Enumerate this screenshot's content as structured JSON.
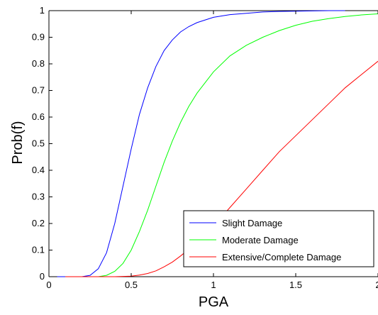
{
  "chart_data": {
    "type": "line",
    "title": "",
    "xlabel": "PGA",
    "ylabel": "Prob(f)",
    "xlim": [
      0,
      2
    ],
    "ylim": [
      0,
      1
    ],
    "xticks": [
      0,
      0.5,
      1,
      1.5,
      2
    ],
    "xtick_labels": [
      "0",
      "0.5",
      "1",
      "1.5",
      "2"
    ],
    "yticks": [
      0,
      0.1,
      0.2,
      0.3,
      0.4,
      0.5,
      0.6,
      0.7,
      0.8,
      0.9,
      1
    ],
    "ytick_labels": [
      "0",
      "0.1",
      "0.2",
      "0.3",
      "0.4",
      "0.5",
      "0.6",
      "0.7",
      "0.8",
      "0.9",
      "1"
    ],
    "grid": false,
    "legend_position": "bottom-right",
    "series": [
      {
        "name": "Slight Damage",
        "color": "#0000ff",
        "x": [
          0.05,
          0.1,
          0.15,
          0.2,
          0.25,
          0.3,
          0.35,
          0.4,
          0.45,
          0.5,
          0.55,
          0.6,
          0.65,
          0.7,
          0.75,
          0.8,
          0.85,
          0.9,
          0.95,
          1.0,
          1.1,
          1.2,
          1.3,
          1.4,
          1.5,
          1.6,
          1.7,
          1.8
        ],
        "y": [
          0.0,
          0.0,
          0.0,
          0.0,
          0.005,
          0.03,
          0.09,
          0.2,
          0.34,
          0.48,
          0.61,
          0.71,
          0.79,
          0.85,
          0.89,
          0.92,
          0.94,
          0.955,
          0.965,
          0.975,
          0.985,
          0.99,
          0.995,
          0.997,
          0.998,
          0.999,
          1.0,
          1.0
        ]
      },
      {
        "name": "Moderate Damage",
        "color": "#00ff00",
        "x": [
          0.1,
          0.2,
          0.3,
          0.35,
          0.4,
          0.45,
          0.5,
          0.55,
          0.6,
          0.65,
          0.7,
          0.75,
          0.8,
          0.85,
          0.9,
          0.95,
          1.0,
          1.1,
          1.2,
          1.3,
          1.4,
          1.5,
          1.6,
          1.7,
          1.8,
          1.9,
          2.0
        ],
        "y": [
          0.0,
          0.0,
          0.0,
          0.005,
          0.02,
          0.05,
          0.1,
          0.17,
          0.25,
          0.34,
          0.43,
          0.51,
          0.58,
          0.64,
          0.69,
          0.73,
          0.77,
          0.83,
          0.87,
          0.9,
          0.925,
          0.945,
          0.96,
          0.97,
          0.978,
          0.984,
          0.988
        ]
      },
      {
        "name": "Extensive/Complete Damage",
        "color": "#ff0000",
        "x": [
          0.1,
          0.3,
          0.4,
          0.5,
          0.55,
          0.6,
          0.65,
          0.7,
          0.75,
          0.8,
          0.85,
          0.9,
          0.95,
          1.0,
          1.1,
          1.2,
          1.3,
          1.4,
          1.5,
          1.6,
          1.7,
          1.8,
          1.9,
          2.0
        ],
        "y": [
          0.0,
          0.0,
          0.0,
          0.002,
          0.006,
          0.012,
          0.022,
          0.037,
          0.055,
          0.078,
          0.103,
          0.13,
          0.16,
          0.19,
          0.26,
          0.33,
          0.4,
          0.47,
          0.53,
          0.59,
          0.65,
          0.71,
          0.76,
          0.81
        ]
      }
    ]
  }
}
